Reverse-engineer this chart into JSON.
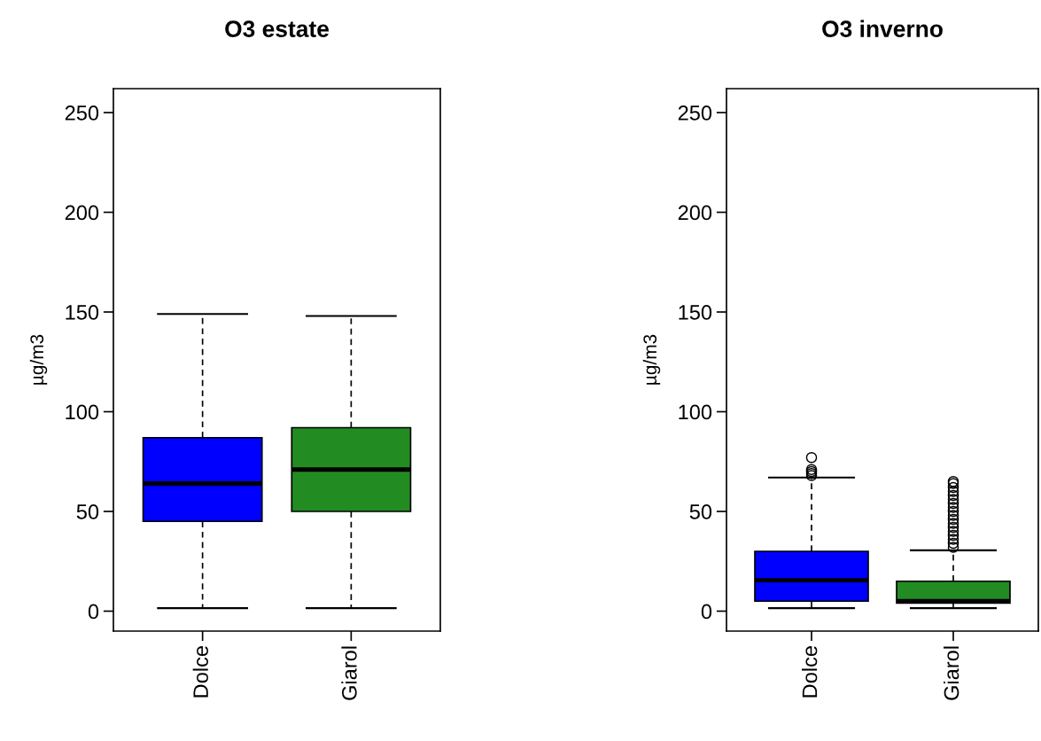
{
  "chart_data": [
    {
      "type": "box",
      "title": "O3 estate",
      "ylabel": "µg/m3",
      "categories": [
        "Dolce",
        "Giarol"
      ],
      "colors": [
        "#0000ff",
        "#228b22"
      ],
      "ylim": [
        -10,
        262
      ],
      "yticks": [
        0,
        50,
        100,
        150,
        200,
        250
      ],
      "grid": false,
      "legend": false,
      "boxes": [
        {
          "low": 1.5,
          "q1": 45,
          "median": 64,
          "q3": 87,
          "high": 149
        },
        {
          "low": 1.5,
          "q1": 50,
          "median": 71,
          "q3": 92,
          "high": 148
        }
      ]
    },
    {
      "type": "box",
      "title": "O3 inverno",
      "ylabel": "µg/m3",
      "categories": [
        "Dolce",
        "Giarol"
      ],
      "colors": [
        "#0000ff",
        "#228b22"
      ],
      "ylim": [
        -10,
        262
      ],
      "yticks": [
        0,
        50,
        100,
        150,
        200,
        250
      ],
      "grid": false,
      "legend": false,
      "boxes": [
        {
          "low": 1.5,
          "q1": 5,
          "median": 15.5,
          "q3": 30,
          "high": 67,
          "outliers": [
            68,
            69,
            70,
            71,
            77
          ]
        },
        {
          "low": 1.5,
          "q1": 4,
          "median": 5,
          "q3": 15,
          "high": 30.5,
          "outliers": [
            32,
            34,
            36,
            38,
            40,
            42,
            44,
            46,
            48,
            50,
            52,
            54,
            56,
            58,
            60,
            62,
            64,
            65
          ]
        }
      ]
    }
  ]
}
